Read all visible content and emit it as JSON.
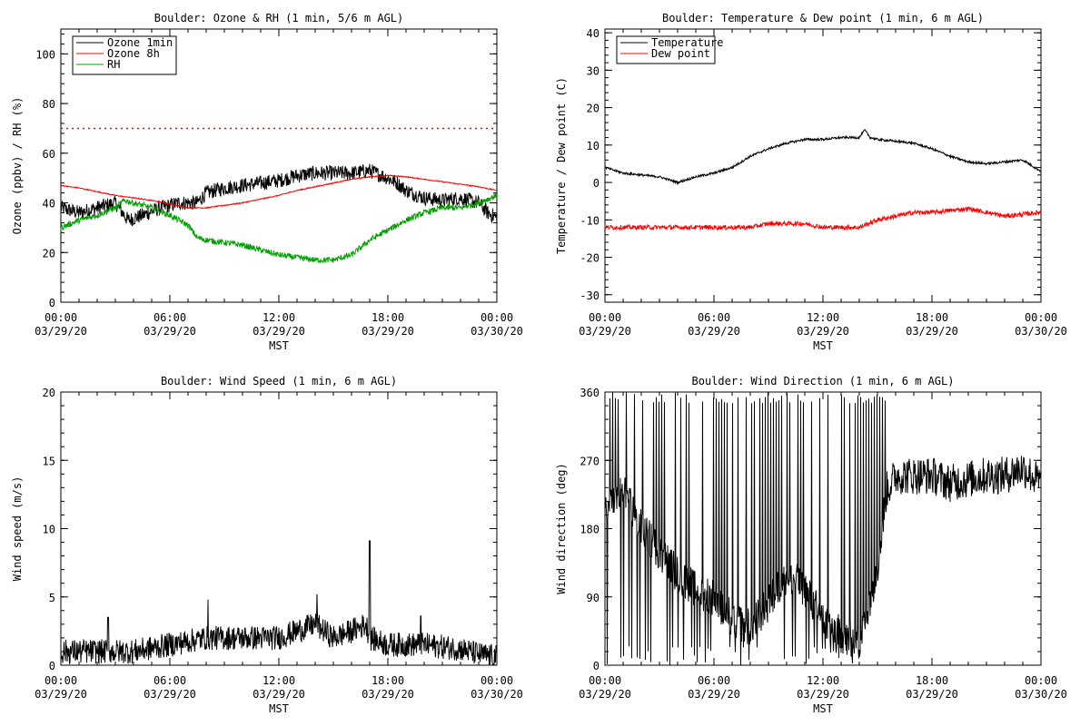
{
  "colors": {
    "black": "#000000",
    "red": "#ff0000",
    "green": "#00a000"
  },
  "chart_data": [
    {
      "type": "line",
      "title": "Boulder: Ozone & RH (1 min, 5/6 m AGL)",
      "xlabel": "MST",
      "ylabel": "Ozone (ppbv) / RH (%)",
      "ylim": [
        0,
        110
      ],
      "yticks": [
        0,
        20,
        40,
        60,
        80,
        100
      ],
      "xlim_hours": [
        0,
        24
      ],
      "xticks": [
        {
          "h": 0,
          "time": "00:00",
          "date": "03/29/20"
        },
        {
          "h": 6,
          "time": "06:00",
          "date": "03/29/20"
        },
        {
          "h": 12,
          "time": "12:00",
          "date": "03/29/20"
        },
        {
          "h": 18,
          "time": "18:00",
          "date": "03/29/20"
        },
        {
          "h": 24,
          "time": "00:00",
          "date": "03/30/20"
        }
      ],
      "legend_position": "top-left",
      "reference_line": {
        "y": 70,
        "color": "#ff0000",
        "style": "dotted"
      },
      "series": [
        {
          "name": "Ozone 1min",
          "color": "#000000",
          "noise": 3,
          "x": [
            0,
            1,
            2,
            3,
            3.7,
            4.5,
            5.5,
            6.5,
            7.5,
            8,
            9,
            10,
            11,
            12,
            13,
            14,
            15,
            16,
            17,
            18,
            18.5,
            19,
            20,
            21,
            22,
            23,
            23.5,
            24
          ],
          "y": [
            38,
            36,
            38,
            40,
            33,
            35,
            38,
            40,
            40,
            44,
            46,
            47,
            48,
            49,
            51,
            52,
            52,
            52,
            53,
            50,
            48,
            45,
            42,
            41,
            42,
            40,
            36,
            34
          ]
        },
        {
          "name": "Ozone 8h",
          "color": "#ff0000",
          "noise": 0.2,
          "x": [
            0,
            1,
            2,
            3,
            4,
            5,
            6,
            7,
            8,
            9,
            10,
            11,
            12,
            13,
            14,
            15,
            16,
            17,
            18,
            19,
            20,
            21,
            22,
            23,
            24
          ],
          "y": [
            47,
            46,
            44.5,
            43,
            42,
            41,
            39.5,
            38,
            38,
            39,
            40,
            41.5,
            43,
            45,
            46.5,
            48,
            49.5,
            50.5,
            51,
            50.5,
            49.5,
            48.5,
            47.5,
            46.5,
            45
          ]
        },
        {
          "name": "RH",
          "color": "#00a000",
          "noise": 1.2,
          "x": [
            0,
            1,
            2,
            3,
            3.5,
            4,
            5,
            6,
            7,
            7.5,
            8,
            9,
            10,
            11,
            12,
            13,
            14,
            15,
            16,
            16.5,
            17,
            18,
            19,
            20,
            21,
            22,
            23,
            24
          ],
          "y": [
            30,
            33,
            35,
            38,
            41,
            40,
            38,
            35,
            31,
            26,
            25,
            24,
            23,
            21,
            19,
            18,
            17,
            17,
            19,
            22,
            25,
            29,
            33,
            36,
            38,
            38,
            40,
            43
          ]
        }
      ]
    },
    {
      "type": "line",
      "title": "Boulder: Temperature & Dew point (1 min, 6 m AGL)",
      "xlabel": "MST",
      "ylabel": "Temperature / Dew point (C)",
      "ylim": [
        -32,
        41
      ],
      "yticks": [
        -30,
        -20,
        -10,
        0,
        10,
        20,
        30,
        40
      ],
      "xlim_hours": [
        0,
        24
      ],
      "xticks": [
        {
          "h": 0,
          "time": "00:00",
          "date": "03/29/20"
        },
        {
          "h": 6,
          "time": "06:00",
          "date": "03/29/20"
        },
        {
          "h": 12,
          "time": "12:00",
          "date": "03/29/20"
        },
        {
          "h": 18,
          "time": "18:00",
          "date": "03/29/20"
        },
        {
          "h": 24,
          "time": "00:00",
          "date": "03/30/20"
        }
      ],
      "legend_position": "top-left",
      "series": [
        {
          "name": "Temperature",
          "color": "#000000",
          "noise": 0.3,
          "x": [
            0,
            1,
            2,
            3,
            4,
            5,
            6,
            7,
            8,
            9,
            10,
            11,
            12,
            13,
            14,
            14.3,
            14.6,
            15,
            16,
            17,
            18,
            19,
            20,
            21,
            22,
            23,
            24
          ],
          "y": [
            4,
            2.5,
            2,
            1.5,
            0,
            1.5,
            2.5,
            4,
            7,
            9,
            10.5,
            11.5,
            11.5,
            12,
            12,
            14,
            12,
            11.5,
            11,
            10.5,
            9,
            7,
            5.5,
            5,
            5.5,
            6,
            3
          ]
        },
        {
          "name": "Dew point",
          "color": "#ff0000",
          "noise": 0.6,
          "x": [
            0,
            2,
            4,
            6,
            8,
            9,
            10,
            11,
            12,
            13,
            14,
            15,
            16,
            17,
            18,
            19,
            20,
            21,
            22,
            23,
            24
          ],
          "y": [
            -12,
            -12,
            -12,
            -12,
            -12,
            -11,
            -11,
            -11,
            -12,
            -12,
            -12,
            -10,
            -9,
            -8,
            -8,
            -7.5,
            -7,
            -8,
            -9,
            -8.5,
            -8
          ]
        }
      ]
    },
    {
      "type": "line",
      "title": "Boulder: Wind Speed (1 min, 6 m AGL)",
      "xlabel": "MST",
      "ylabel": "Wind speed (m/s)",
      "ylim": [
        0,
        20
      ],
      "yticks": [
        0,
        5,
        10,
        15,
        20
      ],
      "xlim_hours": [
        0,
        24
      ],
      "xticks": [
        {
          "h": 0,
          "time": "00:00",
          "date": "03/29/20"
        },
        {
          "h": 6,
          "time": "06:00",
          "date": "03/29/20"
        },
        {
          "h": 12,
          "time": "12:00",
          "date": "03/29/20"
        },
        {
          "h": 18,
          "time": "18:00",
          "date": "03/29/20"
        },
        {
          "h": 24,
          "time": "00:00",
          "date": "03/30/20"
        }
      ],
      "series": [
        {
          "name": "",
          "color": "#000000",
          "noise": 0.9,
          "x": [
            0,
            2,
            4,
            6,
            8,
            10,
            12,
            13,
            14,
            15,
            16,
            16.8,
            17,
            18,
            20,
            22,
            23,
            24
          ],
          "y": [
            1,
            1,
            1,
            1.5,
            2,
            2,
            2,
            2.5,
            3,
            2,
            2.5,
            3,
            2,
            1.5,
            1.5,
            1.2,
            0.8,
            0.6
          ],
          "spikes": [
            {
              "h": 2.6,
              "y": 3.5
            },
            {
              "h": 8.1,
              "y": 4.8
            },
            {
              "h": 14.1,
              "y": 5.2
            },
            {
              "h": 17.0,
              "y": 9.1
            },
            {
              "h": 19.8,
              "y": 3.6
            }
          ]
        }
      ]
    },
    {
      "type": "line",
      "title": "Boulder: Wind Direction (1 min, 6 m AGL)",
      "xlabel": "MST",
      "ylabel": "Wind direction (deg)",
      "ylim": [
        0,
        360
      ],
      "yticks": [
        0,
        90,
        180,
        270,
        360
      ],
      "xlim_hours": [
        0,
        24
      ],
      "xticks": [
        {
          "h": 0,
          "time": "00:00",
          "date": "03/29/20"
        },
        {
          "h": 6,
          "time": "06:00",
          "date": "03/29/20"
        },
        {
          "h": 12,
          "time": "12:00",
          "date": "03/29/20"
        },
        {
          "h": 18,
          "time": "18:00",
          "date": "03/29/20"
        },
        {
          "h": 24,
          "time": "00:00",
          "date": "03/30/20"
        }
      ],
      "series": [
        {
          "name": "",
          "color": "#000000",
          "noise": 25,
          "x": [
            0,
            1,
            2,
            3,
            4,
            5,
            6,
            7,
            8,
            9,
            10,
            11,
            12,
            13,
            14,
            15,
            15.5,
            16,
            17,
            18,
            19,
            20,
            21,
            22,
            23,
            24
          ],
          "y": [
            200,
            230,
            180,
            150,
            120,
            100,
            90,
            60,
            50,
            80,
            120,
            100,
            60,
            40,
            30,
            130,
            230,
            250,
            250,
            250,
            240,
            245,
            250,
            250,
            260,
            240
          ],
          "spike_every_min": 6,
          "spike_range_hours": [
            0,
            15.5
          ]
        }
      ]
    }
  ]
}
